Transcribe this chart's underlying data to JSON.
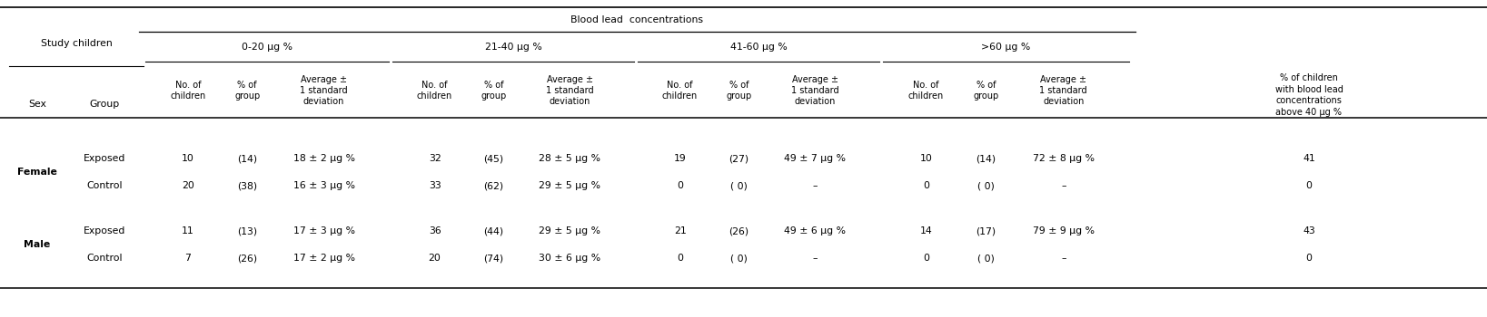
{
  "title": "Blood lead  concentrations",
  "bg_color": "#ffffff",
  "text_color": "#000000",
  "fs": 7.8,
  "fs_small": 7.0,
  "col_group_labels": [
    "0-20 μg %",
    "21-40 μg %",
    "41-60 μg %",
    ">60 μg %"
  ],
  "sub_col_headers": [
    "No. of\nchildren",
    "% of\ngroup",
    "Average ±\n1 standard\ndeviation"
  ],
  "last_col_header": "% of children\nwith blood lead\nconcentrations\nabove 40 μg %",
  "rows": [
    {
      "sex": "Female",
      "group": "Exposed",
      "vals": [
        "10",
        "(14)",
        "18 ± 2 μg %",
        "32",
        "(45)",
        "28 ± 5 μg %",
        "19",
        "(27)",
        "49 ± 7 μg %",
        "10",
        "(14)",
        "72 ± 8 μg %",
        "41"
      ]
    },
    {
      "sex": "",
      "group": "Control",
      "vals": [
        "20",
        "(38)",
        "16 ± 3 μg %",
        "33",
        "(62)",
        "29 ± 5 μg %",
        "0",
        "( 0)",
        "–",
        "0",
        "( 0)",
        "–",
        "0"
      ]
    },
    {
      "sex": "Male",
      "group": "Exposed",
      "vals": [
        "11",
        "(13)",
        "17 ± 3 μg %",
        "36",
        "(44)",
        "29 ± 5 μg %",
        "21",
        "(26)",
        "49 ± 6 μg %",
        "14",
        "(17)",
        "79 ± 9 μg %",
        "43"
      ]
    },
    {
      "sex": "",
      "group": "Control",
      "vals": [
        "7",
        "(26)",
        "17 ± 2 μg %",
        "20",
        "(74)",
        "30 ± 6 μg %",
        "0",
        "( 0)",
        "–",
        "0",
        "( 0)",
        "–",
        "0"
      ]
    }
  ]
}
